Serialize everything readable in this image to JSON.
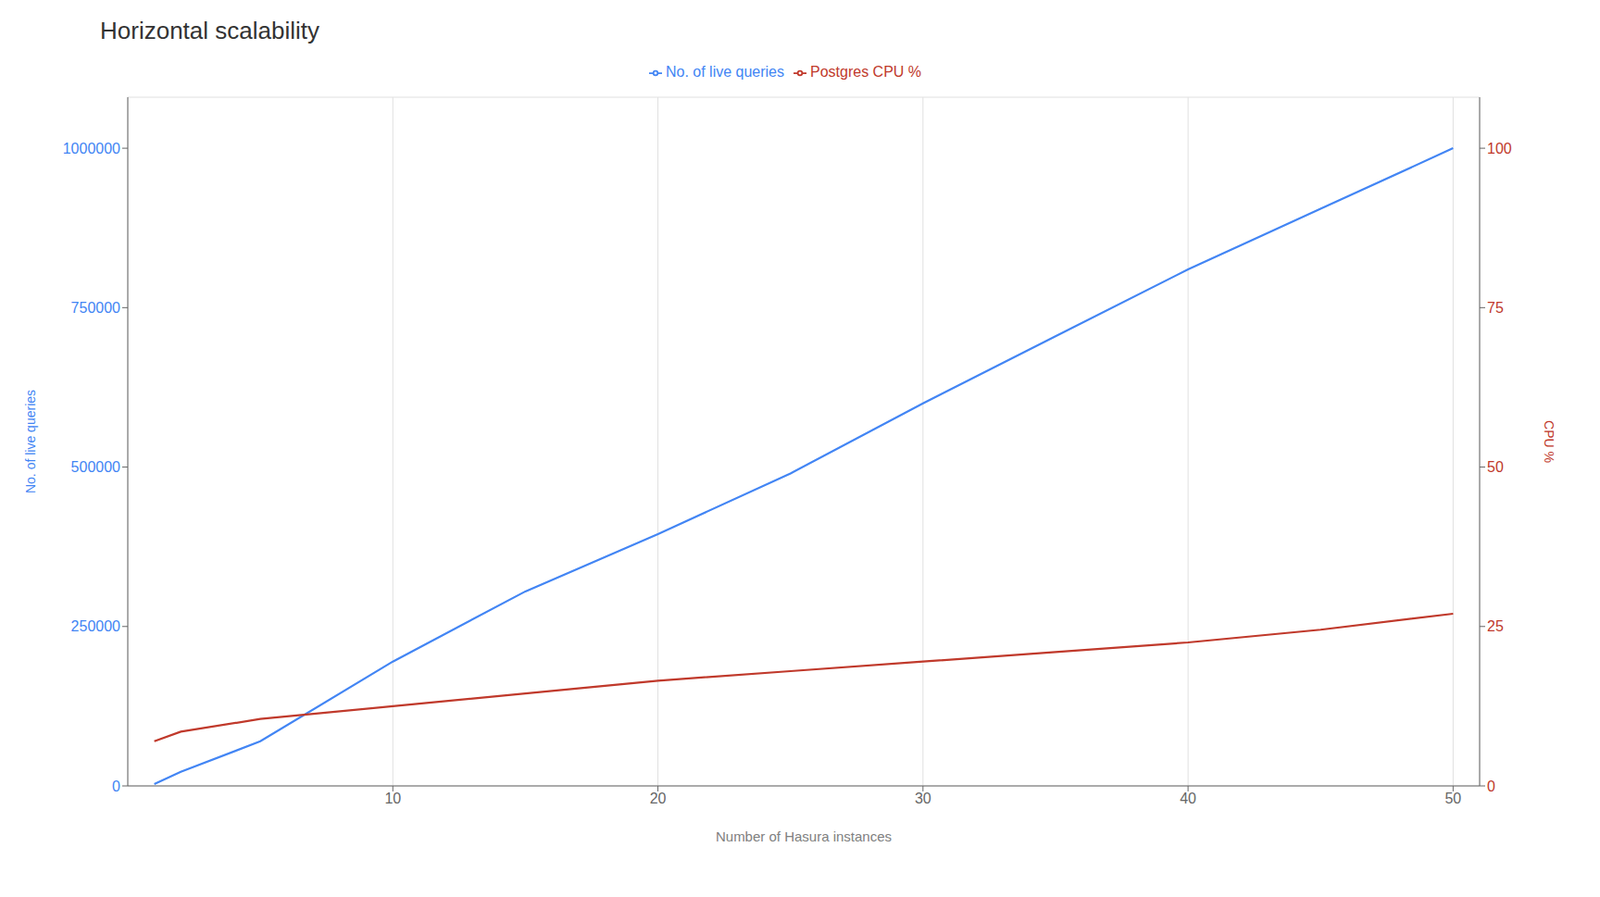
{
  "chart_data": {
    "type": "line",
    "title": "Horizontal scalability",
    "xlabel": "Number of Hasura instances",
    "ylabel": "No. of live queries",
    "y2label": "CPU %",
    "x": [
      1,
      2,
      5,
      10,
      15,
      20,
      25,
      30,
      35,
      40,
      45,
      50
    ],
    "series": [
      {
        "name": "No. of live queries",
        "color": "#4285f4",
        "values": [
          3000,
          22000,
          70000,
          195000,
          305000,
          395000,
          490000,
          600000,
          705000,
          810000,
          905000,
          1000000
        ]
      },
      {
        "name": "Postgres CPU %",
        "color": "#c0392b",
        "axis": "y2",
        "values": [
          7.0,
          8.5,
          10.5,
          12.5,
          14.5,
          16.5,
          18.0,
          19.5,
          21.0,
          22.5,
          24.5,
          27.0
        ]
      }
    ],
    "xlim": [
      0,
      51
    ],
    "xticks": [
      10,
      20,
      30,
      40,
      50
    ],
    "ylim": [
      0,
      1080000
    ],
    "yticks": [
      0,
      250000,
      500000,
      750000,
      1000000
    ],
    "y2lim": [
      0,
      108
    ],
    "y2ticks": [
      0,
      25,
      50,
      75,
      100
    ],
    "grid": true,
    "legend": "top"
  }
}
